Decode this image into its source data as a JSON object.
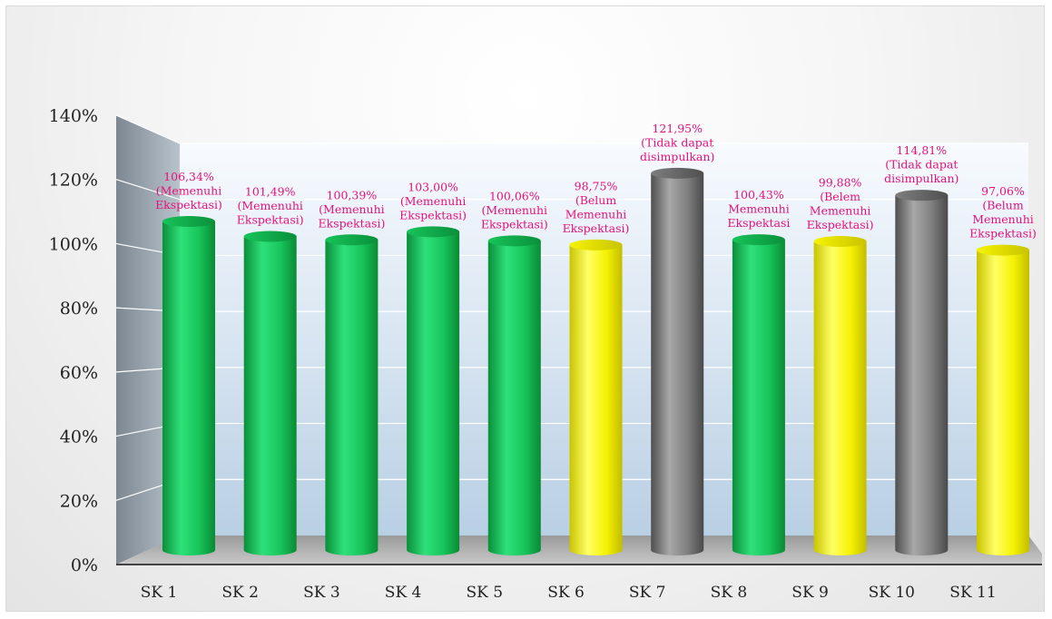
{
  "chart_data": {
    "type": "bar",
    "categories": [
      "SK 1",
      "SK 2",
      "SK 3",
      "SK 4",
      "SK 5",
      "SK 6",
      "SK 7",
      "SK 8",
      "SK 9",
      "SK 10",
      "SK 11"
    ],
    "values": [
      106.34,
      101.49,
      100.39,
      103.0,
      100.06,
      98.75,
      121.95,
      100.43,
      99.88,
      114.81,
      97.06
    ],
    "value_unit": "%",
    "data_labels": [
      [
        "106,34%",
        "(Memenuhi",
        "Ekspektasi)"
      ],
      [
        "101,49%",
        "(Memenuhi",
        "Ekspektasi)"
      ],
      [
        "100,39%",
        "(Memenuhi",
        "Ekspektasi)"
      ],
      [
        "103,00%",
        "(Memenuhi",
        "Ekspektasi)"
      ],
      [
        "100,06%",
        "(Memenuhi",
        "Ekspektasi)"
      ],
      [
        "98,75%",
        "(Belum",
        "Memenuhi",
        "Ekspektasi)"
      ],
      [
        "121,95%",
        "(Tidak dapat",
        "disimpulkan)"
      ],
      [
        "100,43%",
        "Memenuhi",
        "Ekspektasi"
      ],
      [
        "99,88%",
        "(Belem",
        "Memenuhi",
        "Ekspektasi)"
      ],
      [
        "114,81%",
        "(Tidak dapat",
        "disimpulkan)"
      ],
      [
        "97,06%",
        "(Belum",
        "Memenuhi",
        "Ekspektasi)"
      ]
    ],
    "bar_status": [
      "green",
      "green",
      "green",
      "green",
      "green",
      "yellow",
      "gray",
      "green",
      "yellow",
      "gray",
      "yellow"
    ],
    "ylim": [
      0,
      140
    ],
    "yticks": [
      "0%",
      "20%",
      "40%",
      "60%",
      "80%",
      "100%",
      "120%",
      "140%"
    ],
    "grid": true,
    "style": "3d-cylinder",
    "colors": {
      "green": "#1fc05a",
      "yellow": "#f5f200",
      "gray": "#808080",
      "data_label": "#e6117a"
    }
  }
}
